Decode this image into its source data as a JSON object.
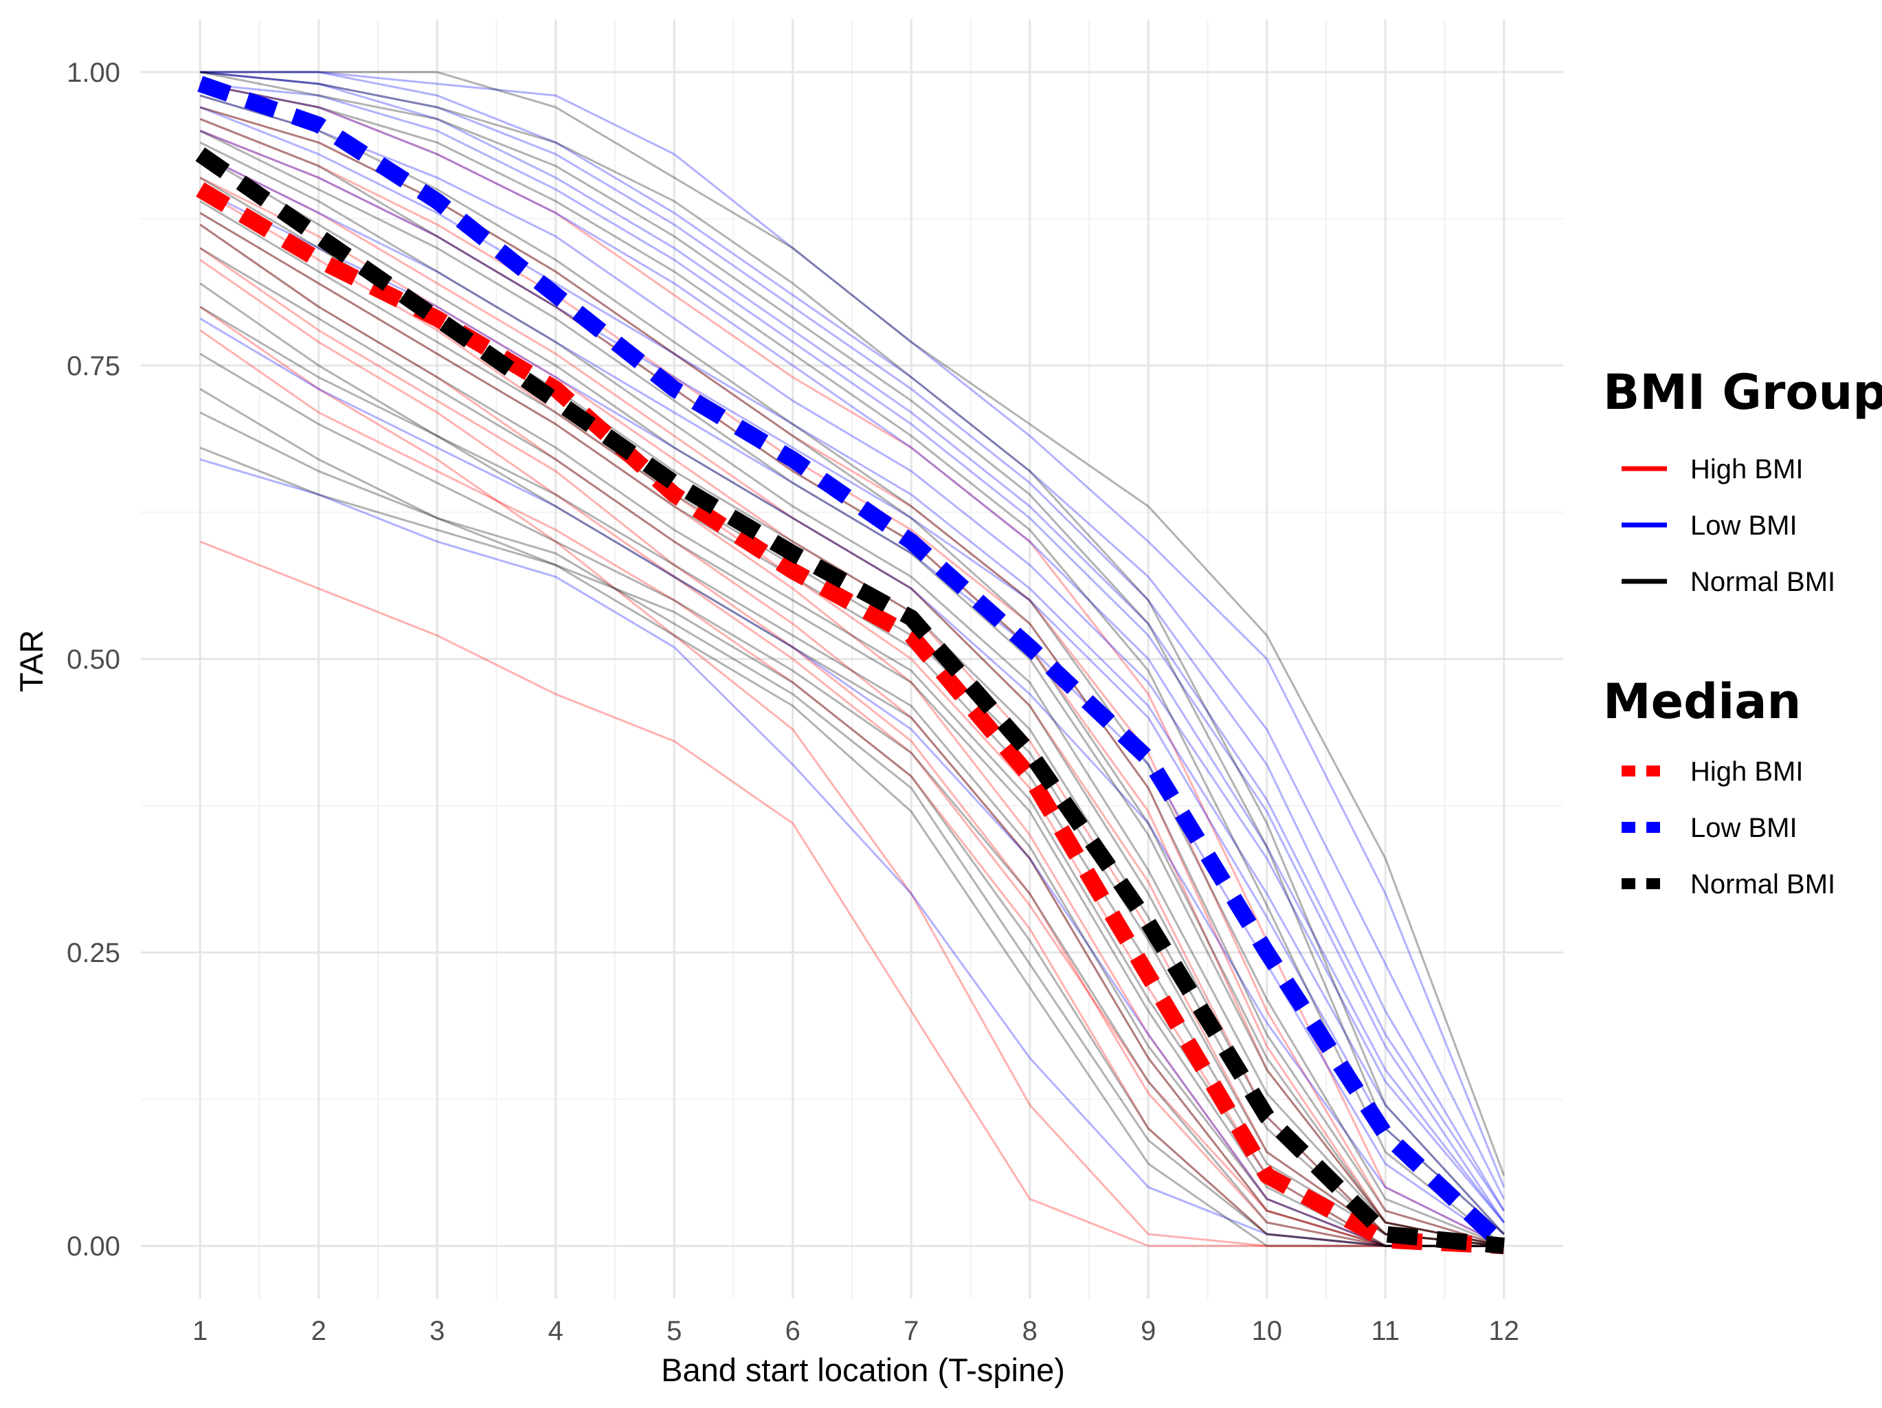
{
  "chart_data": {
    "type": "line",
    "title": "",
    "xlabel": "Band start location (T-spine)",
    "ylabel": "TAR",
    "x": [
      1,
      2,
      3,
      4,
      5,
      6,
      7,
      8,
      9,
      10,
      11,
      12
    ],
    "x_ticks": [
      "1",
      "2",
      "3",
      "4",
      "5",
      "6",
      "7",
      "8",
      "9",
      "10",
      "11",
      "12"
    ],
    "y_ticks": [
      "0.00",
      "0.25",
      "0.50",
      "0.75",
      "1.00"
    ],
    "xlim": [
      0.5,
      12.5
    ],
    "ylim": [
      -0.045,
      1.045
    ],
    "grid": true,
    "colors": {
      "high": "#ff0000",
      "low": "#0000ff",
      "normal": "#000000"
    },
    "median_series": [
      {
        "name": "High BMI",
        "group": "high",
        "values": [
          0.9,
          0.84,
          0.79,
          0.73,
          0.64,
          0.575,
          0.52,
          0.4,
          0.23,
          0.06,
          0.005,
          0.0
        ]
      },
      {
        "name": "Low BMI",
        "group": "low",
        "values": [
          0.99,
          0.955,
          0.89,
          0.81,
          0.73,
          0.67,
          0.6,
          0.51,
          0.415,
          0.25,
          0.095,
          0.0
        ]
      },
      {
        "name": "Normal BMI",
        "group": "normal",
        "values": [
          0.93,
          0.86,
          0.79,
          0.72,
          0.65,
          0.59,
          0.535,
          0.42,
          0.275,
          0.11,
          0.01,
          0.0
        ]
      }
    ],
    "individual_series": [
      {
        "group": "high",
        "values": [
          0.6,
          0.56,
          0.52,
          0.47,
          0.43,
          0.36,
          0.2,
          0.04,
          0.0,
          0.0,
          0.0,
          0.0
        ]
      },
      {
        "group": "high",
        "values": [
          0.8,
          0.73,
          0.67,
          0.6,
          0.52,
          0.44,
          0.3,
          0.12,
          0.01,
          0.0,
          0.0,
          0.0
        ]
      },
      {
        "group": "high",
        "values": [
          0.85,
          0.78,
          0.72,
          0.66,
          0.58,
          0.51,
          0.43,
          0.3,
          0.13,
          0.02,
          0.0,
          0.0
        ]
      },
      {
        "group": "high",
        "values": [
          0.88,
          0.82,
          0.76,
          0.7,
          0.63,
          0.56,
          0.48,
          0.35,
          0.18,
          0.04,
          0.0,
          0.0
        ]
      },
      {
        "group": "high",
        "values": [
          0.91,
          0.86,
          0.8,
          0.74,
          0.67,
          0.6,
          0.54,
          0.43,
          0.27,
          0.08,
          0.01,
          0.0
        ]
      },
      {
        "group": "high",
        "values": [
          0.93,
          0.88,
          0.82,
          0.76,
          0.69,
          0.62,
          0.56,
          0.46,
          0.31,
          0.11,
          0.01,
          0.0
        ]
      },
      {
        "group": "high",
        "values": [
          0.95,
          0.91,
          0.86,
          0.8,
          0.73,
          0.66,
          0.6,
          0.51,
          0.37,
          0.15,
          0.02,
          0.0
        ]
      },
      {
        "group": "high",
        "values": [
          0.97,
          0.94,
          0.89,
          0.83,
          0.76,
          0.69,
          0.63,
          0.55,
          0.42,
          0.2,
          0.03,
          0.0
        ]
      },
      {
        "group": "high",
        "values": [
          0.87,
          0.8,
          0.74,
          0.67,
          0.6,
          0.53,
          0.45,
          0.33,
          0.16,
          0.03,
          0.0,
          0.0
        ]
      },
      {
        "group": "high",
        "values": [
          0.9,
          0.84,
          0.78,
          0.71,
          0.64,
          0.57,
          0.5,
          0.39,
          0.22,
          0.06,
          0.0,
          0.0
        ]
      },
      {
        "group": "high",
        "values": [
          0.78,
          0.71,
          0.66,
          0.61,
          0.55,
          0.48,
          0.4,
          0.27,
          0.1,
          0.01,
          0.0,
          0.0
        ]
      },
      {
        "group": "high",
        "values": [
          0.96,
          0.92,
          0.87,
          0.81,
          0.74,
          0.67,
          0.61,
          0.53,
          0.39,
          0.17,
          0.02,
          0.0
        ]
      },
      {
        "group": "high",
        "values": [
          0.84,
          0.77,
          0.71,
          0.64,
          0.57,
          0.5,
          0.42,
          0.29,
          0.14,
          0.03,
          0.0,
          0.0
        ]
      },
      {
        "group": "high",
        "values": [
          0.99,
          0.97,
          0.93,
          0.88,
          0.81,
          0.74,
          0.68,
          0.6,
          0.47,
          0.26,
          0.05,
          0.0
        ]
      },
      {
        "group": "low",
        "values": [
          0.67,
          0.64,
          0.6,
          0.57,
          0.51,
          0.41,
          0.3,
          0.16,
          0.05,
          0.01,
          0.0,
          0.0
        ]
      },
      {
        "group": "low",
        "values": [
          0.79,
          0.73,
          0.68,
          0.63,
          0.57,
          0.51,
          0.44,
          0.33,
          0.18,
          0.04,
          0.0,
          0.0
        ]
      },
      {
        "group": "low",
        "values": [
          0.95,
          0.91,
          0.86,
          0.8,
          0.74,
          0.68,
          0.62,
          0.55,
          0.45,
          0.28,
          0.1,
          0.01
        ]
      },
      {
        "group": "low",
        "values": [
          0.98,
          0.95,
          0.91,
          0.86,
          0.79,
          0.72,
          0.66,
          0.58,
          0.48,
          0.33,
          0.14,
          0.02
        ]
      },
      {
        "group": "low",
        "values": [
          1.0,
          0.99,
          0.97,
          0.93,
          0.87,
          0.8,
          0.73,
          0.65,
          0.55,
          0.41,
          0.2,
          0.03
        ]
      },
      {
        "group": "low",
        "values": [
          1.0,
          1.0,
          0.99,
          0.98,
          0.93,
          0.85,
          0.77,
          0.69,
          0.6,
          0.5,
          0.3,
          0.05
        ]
      },
      {
        "group": "low",
        "values": [
          0.99,
          0.98,
          0.95,
          0.9,
          0.84,
          0.77,
          0.7,
          0.62,
          0.52,
          0.37,
          0.17,
          0.02
        ]
      },
      {
        "group": "low",
        "values": [
          0.97,
          0.93,
          0.88,
          0.82,
          0.76,
          0.7,
          0.64,
          0.56,
          0.46,
          0.3,
          0.12,
          0.01
        ]
      },
      {
        "group": "low",
        "values": [
          1.0,
          0.99,
          0.96,
          0.91,
          0.85,
          0.78,
          0.71,
          0.63,
          0.53,
          0.38,
          0.18,
          0.03
        ]
      },
      {
        "group": "low",
        "values": [
          0.93,
          0.88,
          0.83,
          0.77,
          0.71,
          0.65,
          0.59,
          0.51,
          0.41,
          0.24,
          0.07,
          0.0
        ]
      },
      {
        "group": "low",
        "values": [
          0.99,
          0.97,
          0.93,
          0.88,
          0.82,
          0.75,
          0.68,
          0.6,
          0.5,
          0.34,
          0.15,
          0.02
        ]
      },
      {
        "group": "low",
        "values": [
          1.0,
          1.0,
          0.98,
          0.94,
          0.88,
          0.81,
          0.74,
          0.66,
          0.57,
          0.44,
          0.24,
          0.04
        ]
      },
      {
        "group": "low",
        "values": [
          0.9,
          0.85,
          0.8,
          0.74,
          0.68,
          0.62,
          0.56,
          0.47,
          0.36,
          0.19,
          0.05,
          0.0
        ]
      },
      {
        "group": "normal",
        "values": [
          0.68,
          0.64,
          0.61,
          0.58,
          0.54,
          0.48,
          0.4,
          0.26,
          0.1,
          0.01,
          0.0,
          0.0
        ]
      },
      {
        "group": "normal",
        "values": [
          0.73,
          0.67,
          0.62,
          0.58,
          0.52,
          0.46,
          0.37,
          0.22,
          0.07,
          0.0,
          0.0,
          0.0
        ]
      },
      {
        "group": "normal",
        "values": [
          0.76,
          0.7,
          0.65,
          0.6,
          0.55,
          0.49,
          0.42,
          0.3,
          0.14,
          0.02,
          0.0,
          0.0
        ]
      },
      {
        "group": "normal",
        "values": [
          0.82,
          0.75,
          0.69,
          0.63,
          0.57,
          0.51,
          0.45,
          0.33,
          0.16,
          0.03,
          0.0,
          0.0
        ]
      },
      {
        "group": "normal",
        "values": [
          0.85,
          0.79,
          0.73,
          0.67,
          0.6,
          0.54,
          0.48,
          0.37,
          0.2,
          0.05,
          0.0,
          0.0
        ]
      },
      {
        "group": "normal",
        "values": [
          0.88,
          0.82,
          0.76,
          0.7,
          0.63,
          0.57,
          0.51,
          0.4,
          0.24,
          0.07,
          0.01,
          0.0
        ]
      },
      {
        "group": "normal",
        "values": [
          0.91,
          0.85,
          0.79,
          0.73,
          0.66,
          0.6,
          0.54,
          0.44,
          0.28,
          0.1,
          0.01,
          0.0
        ]
      },
      {
        "group": "normal",
        "values": [
          0.94,
          0.89,
          0.83,
          0.77,
          0.7,
          0.63,
          0.57,
          0.48,
          0.32,
          0.13,
          0.02,
          0.0
        ]
      },
      {
        "group": "normal",
        "values": [
          0.96,
          0.92,
          0.86,
          0.8,
          0.73,
          0.66,
          0.6,
          0.51,
          0.36,
          0.16,
          0.02,
          0.0
        ]
      },
      {
        "group": "normal",
        "values": [
          0.98,
          0.95,
          0.9,
          0.84,
          0.77,
          0.7,
          0.63,
          0.55,
          0.41,
          0.21,
          0.04,
          0.0
        ]
      },
      {
        "group": "normal",
        "values": [
          1.0,
          0.99,
          0.97,
          0.94,
          0.89,
          0.82,
          0.74,
          0.66,
          0.55,
          0.36,
          0.12,
          0.01
        ]
      },
      {
        "group": "normal",
        "values": [
          1.0,
          1.0,
          1.0,
          0.97,
          0.91,
          0.85,
          0.77,
          0.7,
          0.63,
          0.52,
          0.33,
          0.06
        ]
      },
      {
        "group": "normal",
        "values": [
          0.99,
          0.97,
          0.94,
          0.89,
          0.83,
          0.76,
          0.69,
          0.61,
          0.49,
          0.29,
          0.08,
          0.0
        ]
      },
      {
        "group": "normal",
        "values": [
          0.93,
          0.87,
          0.81,
          0.75,
          0.68,
          0.62,
          0.56,
          0.46,
          0.3,
          0.11,
          0.01,
          0.0
        ]
      },
      {
        "group": "normal",
        "values": [
          0.87,
          0.8,
          0.74,
          0.68,
          0.61,
          0.55,
          0.49,
          0.38,
          0.21,
          0.06,
          0.0,
          0.0
        ]
      },
      {
        "group": "normal",
        "values": [
          0.8,
          0.74,
          0.69,
          0.64,
          0.58,
          0.52,
          0.46,
          0.34,
          0.17,
          0.04,
          0.0,
          0.0
        ]
      },
      {
        "group": "normal",
        "values": [
          0.97,
          0.94,
          0.89,
          0.83,
          0.76,
          0.69,
          0.62,
          0.53,
          0.39,
          0.18,
          0.03,
          0.0
        ]
      },
      {
        "group": "normal",
        "values": [
          0.89,
          0.83,
          0.77,
          0.71,
          0.64,
          0.58,
          0.52,
          0.42,
          0.26,
          0.08,
          0.01,
          0.0
        ]
      },
      {
        "group": "normal",
        "values": [
          0.95,
          0.9,
          0.85,
          0.79,
          0.72,
          0.65,
          0.59,
          0.5,
          0.35,
          0.15,
          0.02,
          0.0
        ]
      },
      {
        "group": "normal",
        "values": [
          1.0,
          0.98,
          0.96,
          0.92,
          0.86,
          0.79,
          0.72,
          0.64,
          0.53,
          0.34,
          0.1,
          0.01
        ]
      },
      {
        "group": "normal",
        "values": [
          0.71,
          0.66,
          0.62,
          0.59,
          0.53,
          0.47,
          0.39,
          0.24,
          0.09,
          0.01,
          0.0,
          0.0
        ]
      }
    ],
    "legends": [
      {
        "title": "BMI Group",
        "style": "solid",
        "items": [
          {
            "label": "High BMI",
            "group": "high"
          },
          {
            "label": "Low BMI",
            "group": "low"
          },
          {
            "label": "Normal BMI",
            "group": "normal"
          }
        ]
      },
      {
        "title": "Median",
        "style": "dashed",
        "items": [
          {
            "label": "High BMI",
            "group": "high"
          },
          {
            "label": "Low BMI",
            "group": "low"
          },
          {
            "label": "Normal BMI",
            "group": "normal"
          }
        ]
      }
    ]
  }
}
